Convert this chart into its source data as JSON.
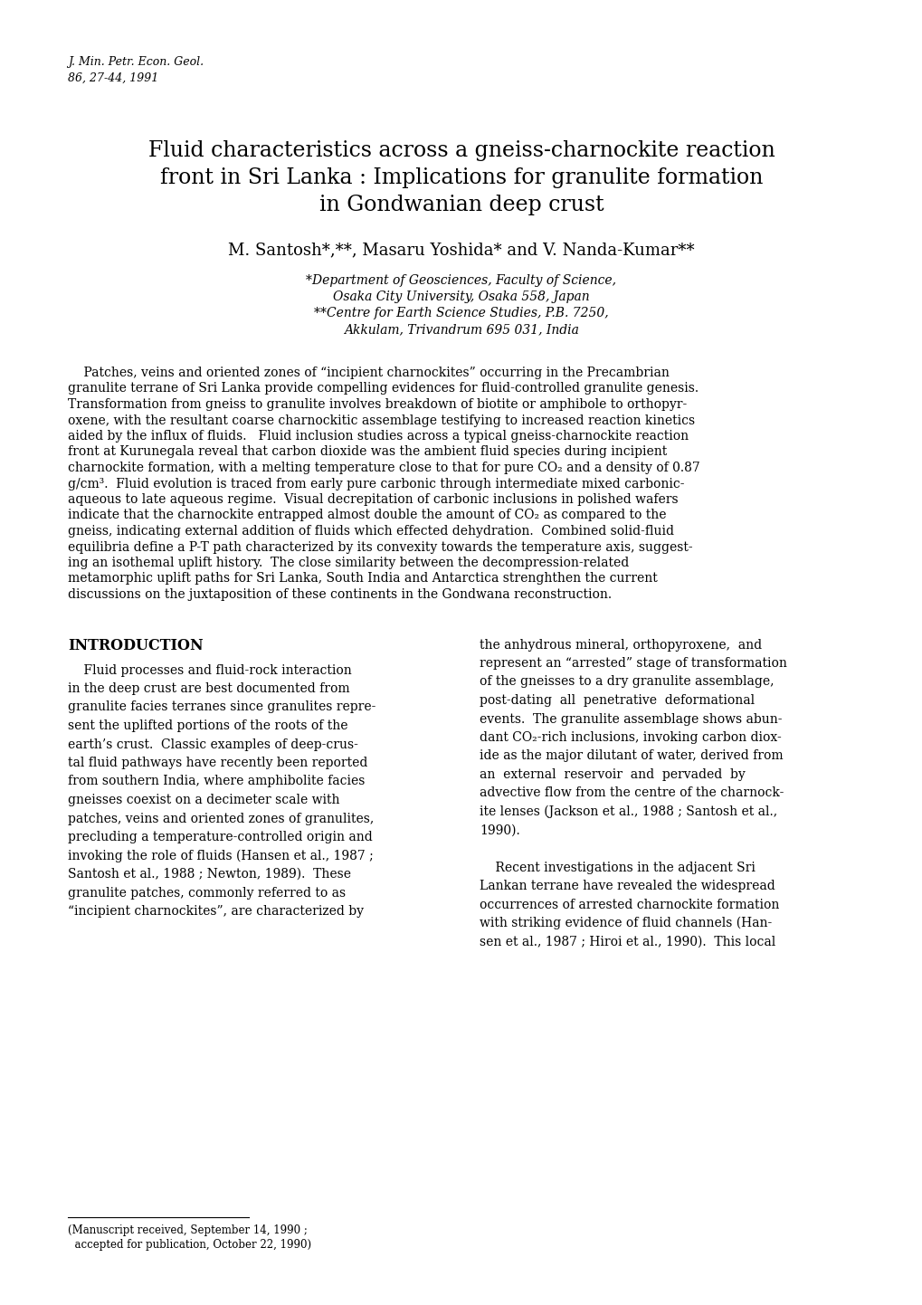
{
  "background_color": "#ffffff",
  "journal_line1": "J. Min. Petr. Econ. Geol.",
  "journal_line2": "86, 27-44, 1991",
  "title_line1": "Fluid characteristics across a gneiss-charnockite reaction",
  "title_line2": "front in Sri Lanka : Implications for granulite formation",
  "title_line3": "in Gondwanian deep crust",
  "authors": "M. Santosh*,**, Masaru Yoshida* and V. Nanda-Kumar**",
  "affil1": "*Department of Geosciences, Faculty of Science,",
  "affil2": "Osaka City University, Osaka 558, Japan",
  "affil3": "**Centre for Earth Science Studies, P.B. 7250,",
  "affil4": "Akkulam, Trivandrum 695 031, India",
  "abstract_lines": [
    "    Patches, veins and oriented zones of “incipient charnockites” occurring in the Precambrian",
    "granulite terrane of Sri Lanka provide compelling evidences for fluid-controlled granulite genesis.",
    "Transformation from gneiss to granulite involves breakdown of biotite or amphibole to orthopyr-",
    "oxene, with the resultant coarse charnockitic assemblage testifying to increased reaction kinetics",
    "aided by the influx of fluids.   Fluid inclusion studies across a typical gneiss-charnockite reaction",
    "front at Kurunegala reveal that carbon dioxide was the ambient fluid species during incipient",
    "charnockite formation, with a melting temperature close to that for pure CO₂ and a density of 0.87",
    "g/cm³.  Fluid evolution is traced from early pure carbonic through intermediate mixed carbonic-",
    "aqueous to late aqueous regime.  Visual decrepitation of carbonic inclusions in polished wafers",
    "indicate that the charnockite entrapped almost double the amount of CO₂ as compared to the",
    "gneiss, indicating external addition of fluids which effected dehydration.  Combined solid-fluid",
    "equilibria define a P-T path characterized by its convexity towards the temperature axis, suggest-",
    "ing an isothemal uplift history.  The close similarity between the decompression-related",
    "metamorphic uplift paths for Sri Lanka, South India and Antarctica strenghthen the current",
    "discussions on the juxtaposition of these continents in the Gondwana reconstruction."
  ],
  "intro_heading": "INTRODUCTION",
  "intro_col1_lines": [
    "    Fluid processes and fluid-rock interaction",
    "in the deep crust are best documented from",
    "granulite facies terranes since granulites repre-",
    "sent the uplifted portions of the roots of the",
    "earth’s crust.  Classic examples of deep-crus-",
    "tal fluid pathways have recently been reported",
    "from southern India, where amphibolite facies",
    "gneisses coexist on a decimeter scale with",
    "patches, veins and oriented zones of granulites,",
    "precluding a temperature-controlled origin and",
    "invoking the role of fluids (Hansen et al., 1987 ;",
    "Santosh et al., 1988 ; Newton, 1989).  These",
    "granulite patches, commonly referred to as",
    "“incipient charnockites”, are characterized by"
  ],
  "intro_col2_lines": [
    "the anhydrous mineral, orthopyroxene,  and",
    "represent an “arrested” stage of transformation",
    "of the gneisses to a dry granulite assemblage,",
    "post-dating  all  penetrative  deformational",
    "events.  The granulite assemblage shows abun-",
    "dant CO₂-rich inclusions, invoking carbon diox-",
    "ide as the major dilutant of water, derived from",
    "an  external  reservoir  and  pervaded  by",
    "advective flow from the centre of the charnock-",
    "ite lenses (Jackson et al., 1988 ; Santosh et al.,",
    "1990).",
    "",
    "    Recent investigations in the adjacent Sri",
    "Lankan terrane have revealed the widespread",
    "occurrences of arrested charnockite formation",
    "with striking evidence of fluid channels (Han-",
    "sen et al., 1987 ; Hiroi et al., 1990).  This local"
  ],
  "footnote_line1": "(Manuscript received, September 14, 1990 ;",
  "footnote_line2": "  accepted for publication, October 22, 1990)"
}
